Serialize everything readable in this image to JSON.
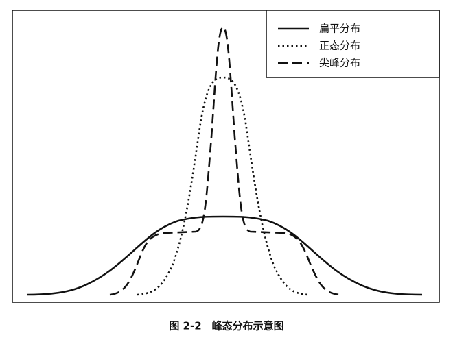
{
  "legend": {
    "items": [
      {
        "label": "扁平分布"
      },
      {
        "label": "正态分布"
      },
      {
        "label": "尖峰分布"
      }
    ]
  },
  "caption": "图 2-2　峰态分布示意图"
}
